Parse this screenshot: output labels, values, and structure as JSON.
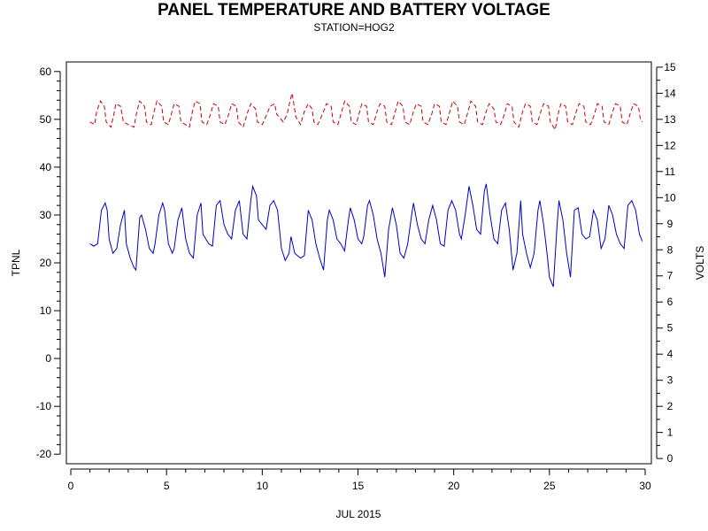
{
  "chart_data": {
    "type": "line",
    "title": "PANEL TEMPERATURE AND BATTERY VOLTAGE",
    "subtitle": "STATION=HOG2",
    "xlabel": "JUL 2015",
    "ylabel_left": "TPNL",
    "ylabel_right": "VOLTS",
    "xlim": [
      0,
      30
    ],
    "ylim_left": [
      -22,
      62
    ],
    "ylim_right": [
      -0.2,
      15.2
    ],
    "x_ticks": [
      0,
      5,
      10,
      15,
      20,
      25,
      30
    ],
    "y_left_ticks": [
      -20,
      -10,
      0,
      10,
      20,
      30,
      40,
      50,
      60
    ],
    "y_right_ticks": [
      0,
      1,
      2,
      3,
      4,
      5,
      6,
      7,
      8,
      9,
      10,
      11,
      12,
      13,
      14,
      15
    ],
    "grid": false,
    "series": [
      {
        "axis": "left",
        "color": "#0000cc",
        "style": "solid",
        "points": [
          [
            1.0,
            24
          ],
          [
            1.2,
            23.5
          ],
          [
            1.4,
            24
          ],
          [
            1.6,
            31
          ],
          [
            1.8,
            32.5
          ],
          [
            1.9,
            31
          ],
          [
            2.0,
            25
          ],
          [
            2.2,
            22
          ],
          [
            2.4,
            23
          ],
          [
            2.6,
            28
          ],
          [
            2.8,
            31
          ],
          [
            2.9,
            24
          ],
          [
            3.1,
            21
          ],
          [
            3.3,
            19
          ],
          [
            3.4,
            18.5
          ],
          [
            3.6,
            29.5
          ],
          [
            3.7,
            30
          ],
          [
            3.9,
            27
          ],
          [
            4.1,
            23
          ],
          [
            4.3,
            22
          ],
          [
            4.4,
            24
          ],
          [
            4.6,
            30
          ],
          [
            4.8,
            32.5
          ],
          [
            4.9,
            31
          ],
          [
            5.1,
            24
          ],
          [
            5.3,
            22
          ],
          [
            5.4,
            23
          ],
          [
            5.6,
            29
          ],
          [
            5.8,
            31.5
          ],
          [
            6.0,
            25
          ],
          [
            6.2,
            22
          ],
          [
            6.4,
            21
          ],
          [
            6.6,
            30
          ],
          [
            6.8,
            32.5
          ],
          [
            6.9,
            26
          ],
          [
            7.2,
            24
          ],
          [
            7.4,
            23.5
          ],
          [
            7.6,
            32
          ],
          [
            7.8,
            33
          ],
          [
            8.0,
            28
          ],
          [
            8.2,
            26
          ],
          [
            8.4,
            25
          ],
          [
            8.6,
            31
          ],
          [
            8.8,
            33
          ],
          [
            9.0,
            26
          ],
          [
            9.2,
            25
          ],
          [
            9.4,
            33
          ],
          [
            9.5,
            36
          ],
          [
            9.7,
            34
          ],
          [
            9.8,
            29
          ],
          [
            10.0,
            28
          ],
          [
            10.2,
            27
          ],
          [
            10.4,
            32
          ],
          [
            10.6,
            33
          ],
          [
            10.8,
            31
          ],
          [
            11.0,
            23
          ],
          [
            11.2,
            20.5
          ],
          [
            11.4,
            22
          ],
          [
            11.5,
            25.5
          ],
          [
            11.7,
            22
          ],
          [
            12.0,
            21
          ],
          [
            12.2,
            21.5
          ],
          [
            12.4,
            31
          ],
          [
            12.6,
            29
          ],
          [
            12.8,
            24
          ],
          [
            13.0,
            21
          ],
          [
            13.2,
            18.5
          ],
          [
            13.4,
            29
          ],
          [
            13.5,
            31
          ],
          [
            13.7,
            29
          ],
          [
            13.9,
            25
          ],
          [
            14.1,
            24
          ],
          [
            14.3,
            22.5
          ],
          [
            14.5,
            29
          ],
          [
            14.6,
            31.5
          ],
          [
            14.8,
            29
          ],
          [
            15.0,
            25
          ],
          [
            15.2,
            24
          ],
          [
            15.3,
            25.5
          ],
          [
            15.5,
            32
          ],
          [
            15.6,
            33
          ],
          [
            15.8,
            30
          ],
          [
            16.0,
            25
          ],
          [
            16.2,
            22
          ],
          [
            16.4,
            17
          ],
          [
            16.6,
            27
          ],
          [
            16.8,
            31.5
          ],
          [
            17.0,
            28
          ],
          [
            17.2,
            22
          ],
          [
            17.4,
            21
          ],
          [
            17.6,
            24
          ],
          [
            17.8,
            30
          ],
          [
            17.9,
            32.5
          ],
          [
            18.1,
            28
          ],
          [
            18.3,
            25
          ],
          [
            18.5,
            24
          ],
          [
            18.7,
            29
          ],
          [
            18.9,
            32
          ],
          [
            19.1,
            29
          ],
          [
            19.3,
            24
          ],
          [
            19.5,
            23.5
          ],
          [
            19.7,
            31
          ],
          [
            19.9,
            33
          ],
          [
            20.1,
            31
          ],
          [
            20.3,
            26
          ],
          [
            20.4,
            25
          ],
          [
            20.6,
            30
          ],
          [
            20.8,
            36
          ],
          [
            21.0,
            32
          ],
          [
            21.2,
            27
          ],
          [
            21.4,
            26
          ],
          [
            21.6,
            35
          ],
          [
            21.7,
            36.5
          ],
          [
            21.9,
            30
          ],
          [
            22.1,
            25
          ],
          [
            22.3,
            24
          ],
          [
            22.5,
            31
          ],
          [
            22.7,
            32.5
          ],
          [
            22.9,
            27
          ],
          [
            23.1,
            18.5
          ],
          [
            23.3,
            22
          ],
          [
            23.5,
            33
          ],
          [
            23.6,
            26
          ],
          [
            23.8,
            22
          ],
          [
            24.0,
            19
          ],
          [
            24.2,
            22
          ],
          [
            24.4,
            31
          ],
          [
            24.5,
            33
          ],
          [
            24.7,
            28
          ],
          [
            24.9,
            21
          ],
          [
            25.0,
            17
          ],
          [
            25.2,
            15
          ],
          [
            25.4,
            28
          ],
          [
            25.5,
            33
          ],
          [
            25.7,
            29
          ],
          [
            25.9,
            22
          ],
          [
            26.1,
            17
          ],
          [
            26.3,
            31
          ],
          [
            26.5,
            31.5
          ],
          [
            26.7,
            26
          ],
          [
            26.9,
            25
          ],
          [
            27.1,
            25.5
          ],
          [
            27.3,
            31
          ],
          [
            27.5,
            29
          ],
          [
            27.7,
            23
          ],
          [
            27.9,
            25
          ],
          [
            28.1,
            32
          ],
          [
            28.3,
            30
          ],
          [
            28.5,
            26
          ],
          [
            28.7,
            24
          ],
          [
            28.9,
            23
          ],
          [
            29.1,
            32
          ],
          [
            29.3,
            33
          ],
          [
            29.5,
            31
          ],
          [
            29.7,
            26
          ],
          [
            29.85,
            24.5
          ]
        ]
      },
      {
        "axis": "right",
        "color": "#cc0000",
        "style": "dashed",
        "points": [
          [
            1.0,
            12.9
          ],
          [
            1.25,
            12.8
          ],
          [
            1.35,
            13.3
          ],
          [
            1.55,
            13.7
          ],
          [
            1.75,
            13.5
          ],
          [
            1.85,
            12.9
          ],
          [
            2.1,
            12.7
          ],
          [
            2.25,
            13.2
          ],
          [
            2.35,
            13.6
          ],
          [
            2.6,
            13.5
          ],
          [
            2.75,
            12.9
          ],
          [
            3.0,
            12.8
          ],
          [
            3.3,
            12.7
          ],
          [
            3.45,
            13.3
          ],
          [
            3.6,
            13.7
          ],
          [
            3.85,
            13.5
          ],
          [
            3.95,
            12.9
          ],
          [
            4.2,
            12.8
          ],
          [
            4.35,
            13.3
          ],
          [
            4.5,
            13.7
          ],
          [
            4.75,
            13.5
          ],
          [
            4.85,
            12.9
          ],
          [
            5.1,
            12.8
          ],
          [
            5.25,
            13.2
          ],
          [
            5.4,
            13.6
          ],
          [
            5.65,
            13.5
          ],
          [
            5.75,
            12.9
          ],
          [
            6.0,
            12.8
          ],
          [
            6.2,
            12.7
          ],
          [
            6.35,
            13.3
          ],
          [
            6.5,
            13.7
          ],
          [
            6.75,
            13.6
          ],
          [
            6.85,
            12.9
          ],
          [
            7.1,
            12.8
          ],
          [
            7.3,
            13.2
          ],
          [
            7.45,
            13.6
          ],
          [
            7.7,
            13.5
          ],
          [
            7.8,
            12.9
          ],
          [
            8.05,
            12.8
          ],
          [
            8.25,
            13.2
          ],
          [
            8.4,
            13.6
          ],
          [
            8.65,
            13.5
          ],
          [
            8.75,
            12.9
          ],
          [
            9.0,
            12.7
          ],
          [
            9.25,
            13.3
          ],
          [
            9.4,
            13.6
          ],
          [
            9.65,
            13.4
          ],
          [
            9.75,
            12.9
          ],
          [
            10.0,
            12.8
          ],
          [
            10.25,
            13.2
          ],
          [
            10.4,
            13.5
          ],
          [
            10.65,
            13.6
          ],
          [
            10.75,
            13.2
          ],
          [
            11.1,
            12.9
          ],
          [
            11.3,
            13.2
          ],
          [
            11.45,
            13.7
          ],
          [
            11.55,
            14.0
          ],
          [
            11.65,
            13.6
          ],
          [
            11.75,
            13.1
          ],
          [
            12.0,
            12.8
          ],
          [
            12.2,
            13.3
          ],
          [
            12.4,
            13.6
          ],
          [
            12.6,
            13.4
          ],
          [
            12.7,
            12.9
          ],
          [
            12.9,
            12.8
          ],
          [
            13.2,
            13.3
          ],
          [
            13.35,
            13.6
          ],
          [
            13.6,
            13.5
          ],
          [
            13.7,
            12.9
          ],
          [
            13.95,
            12.8
          ],
          [
            14.15,
            13.3
          ],
          [
            14.3,
            13.7
          ],
          [
            14.55,
            13.5
          ],
          [
            14.65,
            12.9
          ],
          [
            14.9,
            12.8
          ],
          [
            15.05,
            13.2
          ],
          [
            15.2,
            13.6
          ],
          [
            15.45,
            13.5
          ],
          [
            15.55,
            12.9
          ],
          [
            15.8,
            12.8
          ],
          [
            16.0,
            13.3
          ],
          [
            16.15,
            13.6
          ],
          [
            16.4,
            13.5
          ],
          [
            16.5,
            12.9
          ],
          [
            16.75,
            12.8
          ],
          [
            16.95,
            13.3
          ],
          [
            17.1,
            13.7
          ],
          [
            17.35,
            13.5
          ],
          [
            17.45,
            12.9
          ],
          [
            17.7,
            12.8
          ],
          [
            17.9,
            13.3
          ],
          [
            18.05,
            13.6
          ],
          [
            18.3,
            13.5
          ],
          [
            18.4,
            12.9
          ],
          [
            18.65,
            12.8
          ],
          [
            18.85,
            13.2
          ],
          [
            19.0,
            13.6
          ],
          [
            19.25,
            13.5
          ],
          [
            19.35,
            12.9
          ],
          [
            19.6,
            12.8
          ],
          [
            19.8,
            13.3
          ],
          [
            19.95,
            13.7
          ],
          [
            20.2,
            13.5
          ],
          [
            20.3,
            12.9
          ],
          [
            20.55,
            12.8
          ],
          [
            20.75,
            13.3
          ],
          [
            20.9,
            13.7
          ],
          [
            21.15,
            13.5
          ],
          [
            21.25,
            12.9
          ],
          [
            21.5,
            12.8
          ],
          [
            21.7,
            13.3
          ],
          [
            21.85,
            13.6
          ],
          [
            22.1,
            13.4
          ],
          [
            22.2,
            12.9
          ],
          [
            22.45,
            12.8
          ],
          [
            22.65,
            13.2
          ],
          [
            22.8,
            13.6
          ],
          [
            23.05,
            13.5
          ],
          [
            23.15,
            12.9
          ],
          [
            23.4,
            12.7
          ],
          [
            23.6,
            13.3
          ],
          [
            23.75,
            13.6
          ],
          [
            24.0,
            13.5
          ],
          [
            24.1,
            12.9
          ],
          [
            24.35,
            12.8
          ],
          [
            24.55,
            13.3
          ],
          [
            24.7,
            13.6
          ],
          [
            24.95,
            13.5
          ],
          [
            25.05,
            12.9
          ],
          [
            25.3,
            12.6
          ],
          [
            25.45,
            13.2
          ],
          [
            25.6,
            13.6
          ],
          [
            25.85,
            13.5
          ],
          [
            25.95,
            12.9
          ],
          [
            26.2,
            12.8
          ],
          [
            26.4,
            13.3
          ],
          [
            26.55,
            13.6
          ],
          [
            26.8,
            13.5
          ],
          [
            26.9,
            12.9
          ],
          [
            27.15,
            12.8
          ],
          [
            27.35,
            13.2
          ],
          [
            27.5,
            13.6
          ],
          [
            27.75,
            13.5
          ],
          [
            27.85,
            12.9
          ],
          [
            28.1,
            12.8
          ],
          [
            28.3,
            13.3
          ],
          [
            28.45,
            13.6
          ],
          [
            28.7,
            13.5
          ],
          [
            28.8,
            12.9
          ],
          [
            29.05,
            12.8
          ],
          [
            29.25,
            13.3
          ],
          [
            29.4,
            13.6
          ],
          [
            29.65,
            13.5
          ],
          [
            29.75,
            13.0
          ],
          [
            29.85,
            12.9
          ]
        ]
      }
    ]
  }
}
